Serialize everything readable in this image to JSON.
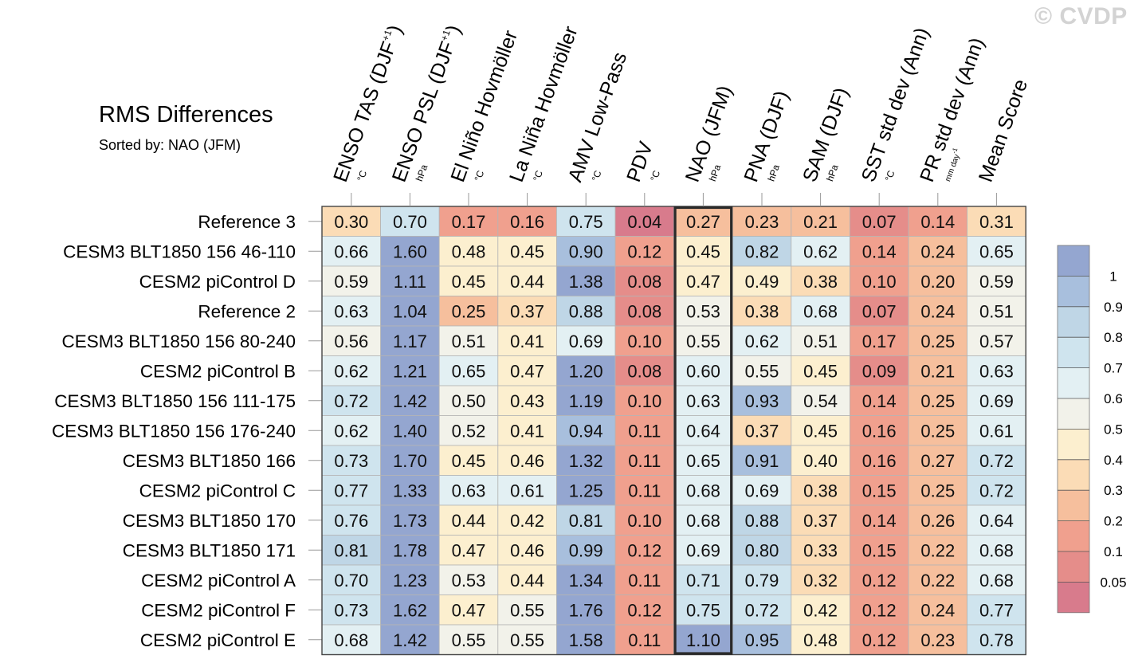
{
  "watermark": "© CVDP",
  "chart_data": {
    "type": "heatmap",
    "title": "RMS Differences",
    "subtitle": "Sorted by: NAO (JFM)",
    "highlighted_column": "NAO (JFM)",
    "columns": [
      {
        "label": "ENSO TAS (DJF",
        "superscript": "+1",
        "label_suffix": ")",
        "unit": "°C"
      },
      {
        "label": "ENSO PSL (DJF",
        "superscript": "+1",
        "label_suffix": ")",
        "unit": "hPa"
      },
      {
        "label": "El Niño Hovmöller",
        "superscript": "",
        "label_suffix": "",
        "unit": "°C"
      },
      {
        "label": "La Niña Hovmöller",
        "superscript": "",
        "label_suffix": "",
        "unit": "°C"
      },
      {
        "label": "AMV Low-Pass",
        "superscript": "",
        "label_suffix": "",
        "unit": "°C"
      },
      {
        "label": "PDV",
        "superscript": "",
        "label_suffix": "",
        "unit": "°C"
      },
      {
        "label": "NAO (JFM)",
        "superscript": "",
        "label_suffix": "",
        "unit": "hPa"
      },
      {
        "label": "PNA (DJF)",
        "superscript": "",
        "label_suffix": "",
        "unit": "hPa"
      },
      {
        "label": "SAM (DJF)",
        "superscript": "",
        "label_suffix": "",
        "unit": "hPa"
      },
      {
        "label": "SST std dev (Ann)",
        "superscript": "",
        "label_suffix": "",
        "unit": "°C"
      },
      {
        "label": "PR std dev (Ann)",
        "superscript": "",
        "label_suffix": "",
        "unit": "mm day-1"
      },
      {
        "label": "Mean Score",
        "superscript": "",
        "label_suffix": "",
        "unit": ""
      }
    ],
    "rows": [
      {
        "name": "Reference 3",
        "values": [
          0.3,
          0.7,
          0.17,
          0.16,
          0.75,
          0.04,
          0.27,
          0.23,
          0.21,
          0.07,
          0.14,
          0.31
        ]
      },
      {
        "name": "CESM3 BLT1850 156 46-110",
        "values": [
          0.66,
          1.6,
          0.48,
          0.45,
          0.9,
          0.12,
          0.45,
          0.82,
          0.62,
          0.14,
          0.24,
          0.65
        ]
      },
      {
        "name": "CESM2 piControl D",
        "values": [
          0.59,
          1.11,
          0.45,
          0.44,
          1.38,
          0.08,
          0.47,
          0.49,
          0.38,
          0.1,
          0.2,
          0.59
        ]
      },
      {
        "name": "Reference 2",
        "values": [
          0.63,
          1.04,
          0.25,
          0.37,
          0.88,
          0.08,
          0.53,
          0.38,
          0.68,
          0.07,
          0.24,
          0.51
        ]
      },
      {
        "name": "CESM3 BLT1850 156 80-240",
        "values": [
          0.56,
          1.17,
          0.51,
          0.41,
          0.69,
          0.1,
          0.55,
          0.62,
          0.51,
          0.17,
          0.25,
          0.57
        ]
      },
      {
        "name": "CESM2 piControl B",
        "values": [
          0.62,
          1.21,
          0.65,
          0.47,
          1.2,
          0.08,
          0.6,
          0.55,
          0.45,
          0.09,
          0.21,
          0.63
        ]
      },
      {
        "name": "CESM3 BLT1850 156 111-175",
        "values": [
          0.72,
          1.42,
          0.5,
          0.43,
          1.19,
          0.1,
          0.63,
          0.93,
          0.54,
          0.14,
          0.25,
          0.69
        ]
      },
      {
        "name": "CESM3 BLT1850 156 176-240",
        "values": [
          0.62,
          1.4,
          0.52,
          0.41,
          0.94,
          0.11,
          0.64,
          0.37,
          0.45,
          0.16,
          0.25,
          0.61
        ]
      },
      {
        "name": "CESM3 BLT1850 166",
        "values": [
          0.73,
          1.7,
          0.45,
          0.46,
          1.32,
          0.11,
          0.65,
          0.91,
          0.4,
          0.16,
          0.27,
          0.72
        ]
      },
      {
        "name": "CESM2 piControl C",
        "values": [
          0.77,
          1.33,
          0.63,
          0.61,
          1.25,
          0.11,
          0.68,
          0.69,
          0.38,
          0.15,
          0.25,
          0.72
        ]
      },
      {
        "name": "CESM3 BLT1850 170",
        "values": [
          0.76,
          1.73,
          0.44,
          0.42,
          0.81,
          0.1,
          0.68,
          0.88,
          0.37,
          0.14,
          0.26,
          0.64
        ]
      },
      {
        "name": "CESM3 BLT1850 171",
        "values": [
          0.81,
          1.78,
          0.47,
          0.46,
          0.99,
          0.12,
          0.69,
          0.8,
          0.33,
          0.15,
          0.22,
          0.68
        ]
      },
      {
        "name": "CESM2 piControl A",
        "values": [
          0.7,
          1.23,
          0.53,
          0.44,
          1.34,
          0.11,
          0.71,
          0.79,
          0.32,
          0.12,
          0.22,
          0.68
        ]
      },
      {
        "name": "CESM2 piControl F",
        "values": [
          0.73,
          1.62,
          0.47,
          0.55,
          1.76,
          0.12,
          0.75,
          0.72,
          0.42,
          0.12,
          0.24,
          0.77
        ]
      },
      {
        "name": "CESM2 piControl E",
        "values": [
          0.68,
          1.42,
          0.55,
          0.55,
          1.58,
          0.11,
          1.1,
          0.95,
          0.48,
          0.12,
          0.23,
          0.78
        ]
      }
    ],
    "colorbar": {
      "labels": [
        "1",
        "0.9",
        "0.8",
        "0.7",
        "0.6",
        "0.5",
        "0.4",
        "0.3",
        "0.2",
        "0.1",
        "0.05"
      ],
      "thresholds": [
        0.05,
        0.1,
        0.2,
        0.3,
        0.4,
        0.5,
        0.6,
        0.7,
        0.8,
        0.9,
        1.0
      ],
      "colors": [
        "#d87b8c",
        "#e58d8a",
        "#f0a08e",
        "#f6bf9d",
        "#fbdcb6",
        "#fcefcf",
        "#f2f2ea",
        "#e3f0f3",
        "#cfe4ee",
        "#bfd6e6",
        "#a8bfdd",
        "#94a6d0"
      ]
    }
  }
}
